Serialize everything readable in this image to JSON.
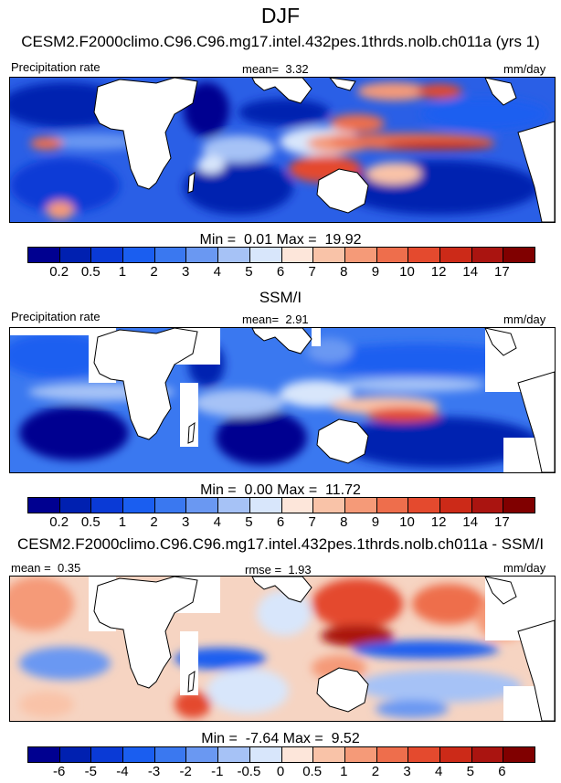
{
  "season": "DJF",
  "panels": [
    {
      "title": "CESM2.F2000climo.C96.C96.mg17.intel.432pes.1thrds.nolb.ch011a (yrs 1)",
      "left_label": "Precipitation rate",
      "stat_label": "mean=",
      "stat_value": "3.32",
      "units": "mm/day",
      "min_label": "Min =",
      "min_value": "0.01",
      "max_label": "Max =",
      "max_value": "19.92"
    },
    {
      "title": "SSM/I",
      "left_label": "Precipitation rate",
      "stat_label": "mean=",
      "stat_value": "2.91",
      "units": "mm/day",
      "min_label": "Min =",
      "min_value": "0.00",
      "max_label": "Max =",
      "max_value": "11.72"
    },
    {
      "title": "CESM2.F2000climo.C96.C96.mg17.intel.432pes.1thrds.nolb.ch011a - SSM/I",
      "left_label": "mean =",
      "left_value": "0.35",
      "stat_label": "rmse =",
      "stat_value": "1.93",
      "units": "mm/day",
      "min_label": "Min =",
      "min_value": "-7.64",
      "max_label": "Max =",
      "max_value": "9.52"
    }
  ],
  "colorbars": {
    "precip": {
      "colors": [
        "#000090",
        "#0020b0",
        "#0a3ad6",
        "#1a5ef0",
        "#3a78f0",
        "#6a98f2",
        "#a6c2f6",
        "#d8e6fb",
        "#fde6da",
        "#f9c3a8",
        "#f59a78",
        "#ee6e4c",
        "#e44a2e",
        "#cc2a18",
        "#aa1410",
        "#800000"
      ],
      "ticks": [
        "0.2",
        "0.5",
        "1",
        "2",
        "3",
        "4",
        "5",
        "6",
        "7",
        "8",
        "9",
        "10",
        "12",
        "14",
        "17"
      ]
    },
    "diff": {
      "colors": [
        "#000090",
        "#0020b0",
        "#0a3ad6",
        "#1a5ef0",
        "#3a78f0",
        "#6a98f2",
        "#a6c2f6",
        "#d8e6fb",
        "#fde6da",
        "#f9c3a8",
        "#f59a78",
        "#ee6e4c",
        "#e44a2e",
        "#cc2a18",
        "#aa1410",
        "#800000"
      ],
      "ticks": [
        "-6",
        "-5",
        "-4",
        "-3",
        "-2",
        "-1",
        "-0.5",
        "0",
        "0.5",
        "1",
        "2",
        "3",
        "4",
        "5",
        "6"
      ]
    }
  }
}
